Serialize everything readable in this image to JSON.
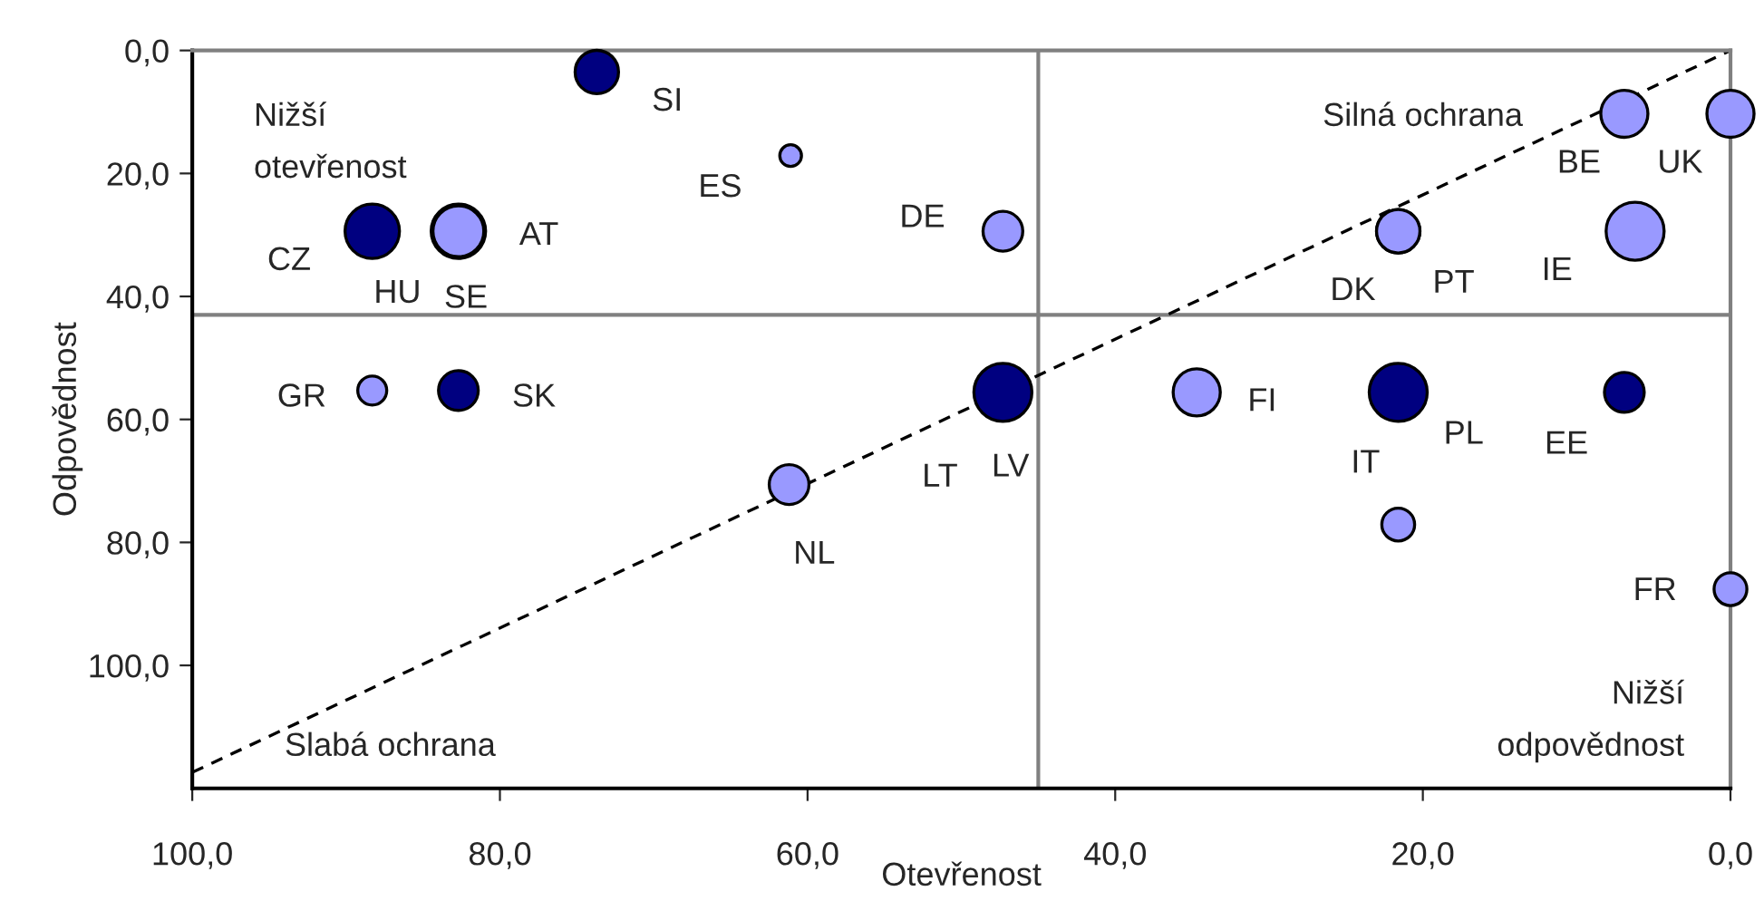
{
  "chart_data": {
    "type": "bubble",
    "xlabel": "Otevřenost",
    "ylabel": "Odpovědnost",
    "xlim": [
      100,
      0
    ],
    "ylim": [
      120,
      0
    ],
    "xticks": [
      {
        "value": 100,
        "label": "100,0"
      },
      {
        "value": 80,
        "label": "80,0"
      },
      {
        "value": 60,
        "label": "60,0"
      },
      {
        "value": 40,
        "label": "40,0"
      },
      {
        "value": 20,
        "label": "20,0"
      },
      {
        "value": 0,
        "label": "0,0"
      }
    ],
    "yticks": [
      {
        "value": 0,
        "label": "0,0"
      },
      {
        "value": 20,
        "label": "20,0"
      },
      {
        "value": 40,
        "label": "40,0"
      },
      {
        "value": 60,
        "label": "60,0"
      },
      {
        "value": 80,
        "label": "80,0"
      },
      {
        "value": 100,
        "label": "100,0"
      }
    ],
    "grid": false,
    "legend": false,
    "series": [
      {
        "type": "bubble",
        "color": "#000080",
        "x": [
          73.7,
          88.3,
          82.7,
          82.7,
          47.3,
          21.6,
          6.9
        ],
        "values": [
          3.5,
          29.4,
          29.4,
          55.3,
          55.6,
          55.6,
          55.6
        ],
        "sizes": [
          0.56,
          0.88,
          0.88,
          0.47,
          1,
          1,
          0.47
        ],
        "value_labels": [
          "SI",
          "CZ",
          "SE",
          "SK",
          "LV",
          "PL",
          "EE"
        ]
      },
      {
        "type": "bubble",
        "color": "#9999ff",
        "x": [
          61.1,
          82.7,
          88.3,
          47.3,
          21.6,
          21.6,
          6.9,
          0,
          6.2,
          34.7,
          61.2,
          21.6,
          0
        ],
        "values": [
          17.1,
          29.4,
          55.3,
          29.4,
          29.4,
          29.4,
          10.3,
          10.3,
          29.4,
          55.6,
          70.6,
          77.1,
          87.6
        ],
        "sizes": [
          0.14,
          0.77,
          0.25,
          0.47,
          0.56,
          0.56,
          0.66,
          0.66,
          1,
          0.66,
          0.47,
          0.32,
          0.32
        ],
        "value_labels": [
          "ES",
          "AT",
          "GR",
          "DE",
          "DK",
          "PT",
          "BE",
          "UK",
          "IE",
          "FI",
          "NL",
          "IT",
          "FR"
        ]
      },
      {
        "type": "line",
        "color": "#000000",
        "line_style": "dashed",
        "x": [
          100,
          0
        ],
        "values": [
          117.4,
          0
        ]
      }
    ],
    "ref_lines": [
      {
        "axis": "x",
        "value": 45,
        "color": "#808080"
      },
      {
        "axis": "y",
        "value": 43,
        "color": "#808080"
      }
    ],
    "annotations": [
      "Nižší\notevřenost",
      "Silná ochrana",
      "Slabá ochrana",
      "Nižší\nodpovědnost",
      {
        "text": "HU",
        "x": 88.3,
        "y": 29.4
      },
      {
        "text": "LT",
        "x": 47.3,
        "y": 55.6
      }
    ]
  }
}
